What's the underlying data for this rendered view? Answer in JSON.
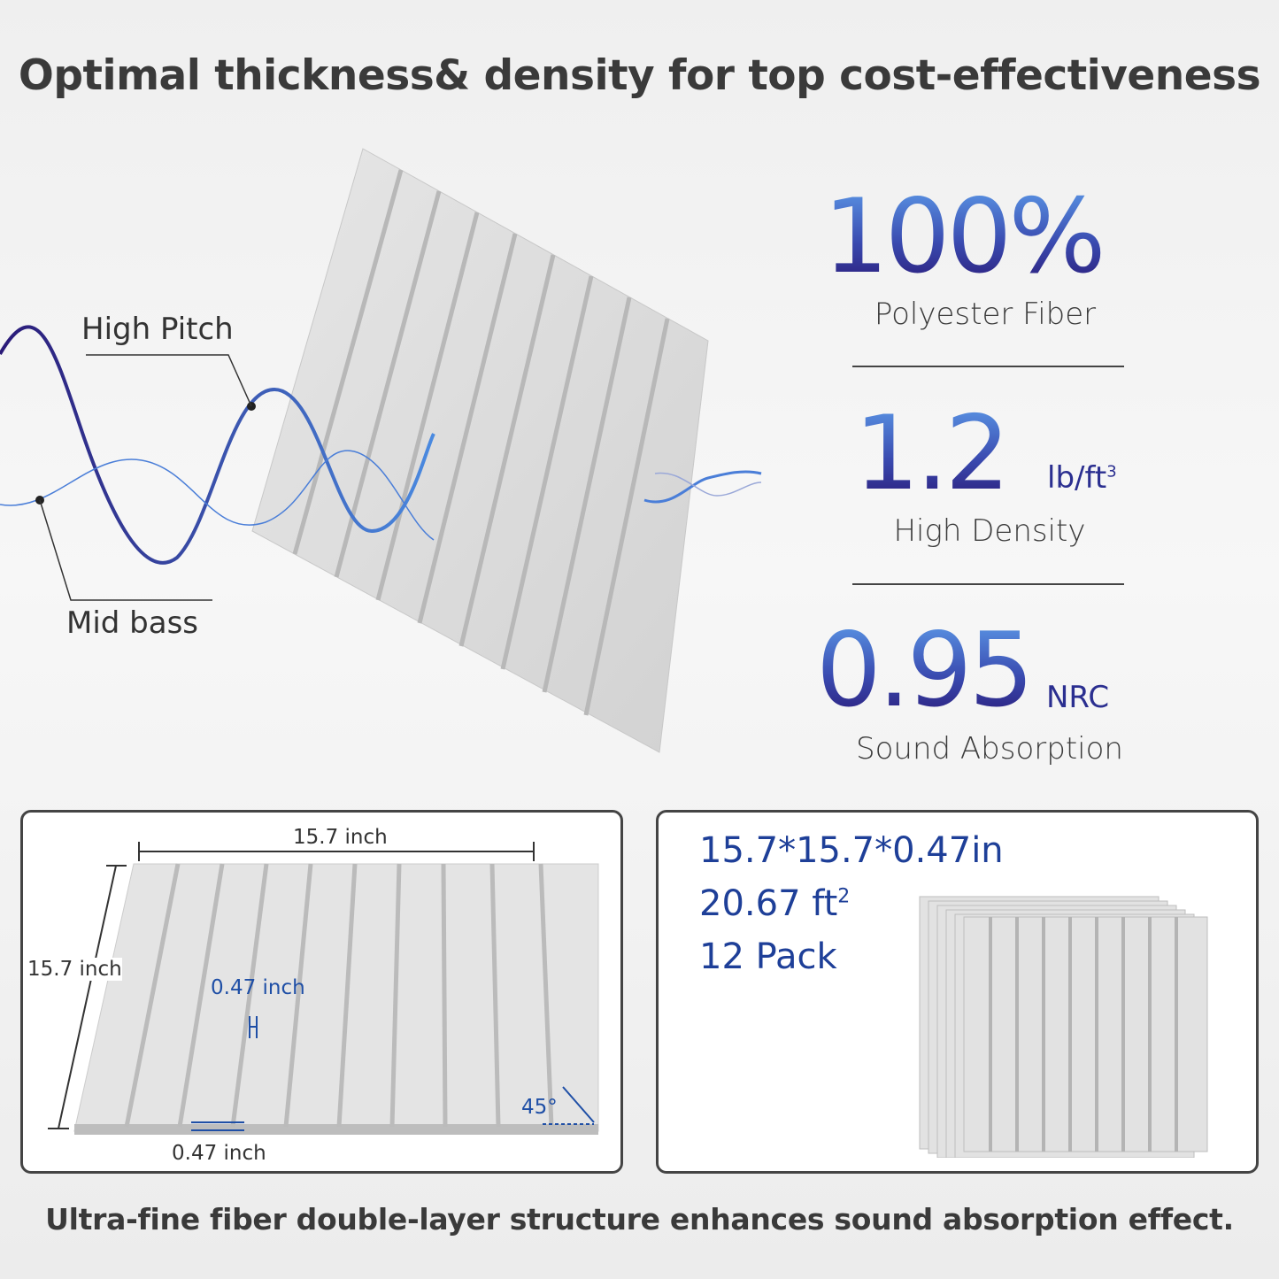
{
  "title": "Optimal thickness& density for top cost-effectiveness",
  "wave_labels": {
    "high": "High Pitch",
    "mid": "Mid bass"
  },
  "stats": [
    {
      "value": "100%",
      "unit": "",
      "label": "Polyester Fiber"
    },
    {
      "value": "1.2",
      "unit": "lb/ft",
      "unit_sup": "3",
      "label": "High Density"
    },
    {
      "value": "0.95",
      "unit": "NRC",
      "label": "Sound Absorption"
    }
  ],
  "dimensions": {
    "width": "15.7 inch",
    "height": "15.7 inch",
    "thickness": "0.47 inch",
    "groove": "0.47 inch",
    "angle": "45°"
  },
  "specs": {
    "size": "15.7*15.7*0.47in",
    "area": "20.67 ft",
    "area_sup": "2",
    "pack": "12 Pack"
  },
  "footer": "Ultra-fine fiber double-layer structure enhances sound absorption effect.",
  "colors": {
    "accent": "#2b2f90",
    "accent_light": "#5b97e6",
    "text": "#333333"
  }
}
